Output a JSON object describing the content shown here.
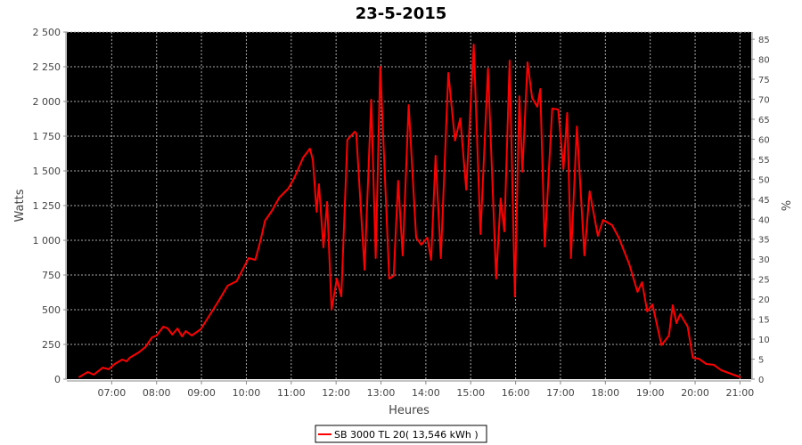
{
  "chart_data": {
    "type": "line",
    "title": "23-5-2015",
    "xlabel": "Heures",
    "ylabel": "Watts",
    "ylabel_right": "%",
    "xlim": [
      "06:00",
      "21:15"
    ],
    "ylim": [
      0,
      2500
    ],
    "ylim_right": [
      0,
      86.8
    ],
    "x_ticks": [
      "07:00",
      "08:00",
      "09:00",
      "10:00",
      "11:00",
      "12:00",
      "13:00",
      "14:00",
      "15:00",
      "16:00",
      "17:00",
      "18:00",
      "19:00",
      "20:00",
      "21:00"
    ],
    "y_ticks": [
      "0",
      "250",
      "500",
      "750",
      "1 000",
      "1 250",
      "1 500",
      "1 750",
      "2 000",
      "2 250",
      "2 500"
    ],
    "y_ticks_right": [
      "0",
      "5",
      "10",
      "15",
      "20",
      "25",
      "30",
      "35",
      "40",
      "45",
      "50",
      "55",
      "60",
      "65",
      "70",
      "75",
      "80",
      "85"
    ],
    "grid": true,
    "background": "#000000",
    "legend_placement": "bottom",
    "series": [
      {
        "name": "SB 3000 TL 20( 13,546 kWh )",
        "color": "#ff0000",
        "x": [
          "06:16",
          "06:28",
          "06:36",
          "06:48",
          "06:56",
          "07:04",
          "07:14",
          "07:20",
          "07:24",
          "07:36",
          "07:45",
          "07:54",
          "08:00",
          "08:09",
          "08:15",
          "08:21",
          "08:28",
          "08:34",
          "08:39",
          "08:47",
          "08:59",
          "09:08",
          "09:23",
          "09:35",
          "09:47",
          "09:55",
          "10:03",
          "10:12",
          "10:19",
          "10:25",
          "10:34",
          "10:44",
          "10:56",
          "11:04",
          "11:16",
          "11:25",
          "11:29",
          "11:34",
          "11:37",
          "11:43",
          "11:48",
          "11:54",
          "12:01",
          "12:07",
          "12:15",
          "12:25",
          "12:27",
          "12:38",
          "12:47",
          "12:53",
          "12:59",
          "13:11",
          "13:17",
          "13:23",
          "13:29",
          "13:37",
          "13:47",
          "13:54",
          "14:02",
          "14:07",
          "14:13",
          "14:20",
          "14:30",
          "14:39",
          "14:46",
          "14:54",
          "15:04",
          "15:13",
          "15:23",
          "15:34",
          "15:40",
          "15:45",
          "15:52",
          "15:59",
          "16:05",
          "16:09",
          "16:16",
          "16:22",
          "16:29",
          "16:33",
          "16:39",
          "16:49",
          "16:57",
          "17:04",
          "17:09",
          "17:14",
          "17:22",
          "17:32",
          "17:39",
          "17:50",
          "17:57",
          "18:09",
          "18:18",
          "18:32",
          "18:43",
          "18:49",
          "18:56",
          "19:03",
          "19:15",
          "19:25",
          "19:30",
          "19:35",
          "19:40",
          "19:50",
          "19:57",
          "20:05",
          "20:15",
          "20:25",
          "20:35",
          "21:01"
        ],
        "values": [
          13,
          51,
          32,
          83,
          71,
          109,
          141,
          128,
          154,
          192,
          231,
          301,
          314,
          378,
          365,
          321,
          365,
          308,
          346,
          314,
          359,
          436,
          564,
          673,
          705,
          788,
          872,
          859,
          1000,
          1141,
          1211,
          1308,
          1372,
          1449,
          1596,
          1660,
          1577,
          1205,
          1404,
          949,
          1276,
          500,
          724,
          596,
          1724,
          1782,
          1769,
          788,
          2013,
          872,
          2250,
          724,
          744,
          1429,
          891,
          1974,
          1019,
          968,
          1019,
          859,
          1609,
          872,
          2205,
          1718,
          1878,
          1365,
          2410,
          1045,
          2237,
          724,
          1301,
          1064,
          2295,
          596,
          2038,
          1494,
          2282,
          2026,
          1962,
          2090,
          955,
          1949,
          1942,
          1513,
          1917,
          872,
          1820,
          891,
          1353,
          1032,
          1147,
          1109,
          1019,
          827,
          628,
          699,
          487,
          538,
          244,
          314,
          532,
          404,
          468,
          378,
          154,
          147,
          109,
          103,
          64,
          13
        ]
      }
    ]
  }
}
